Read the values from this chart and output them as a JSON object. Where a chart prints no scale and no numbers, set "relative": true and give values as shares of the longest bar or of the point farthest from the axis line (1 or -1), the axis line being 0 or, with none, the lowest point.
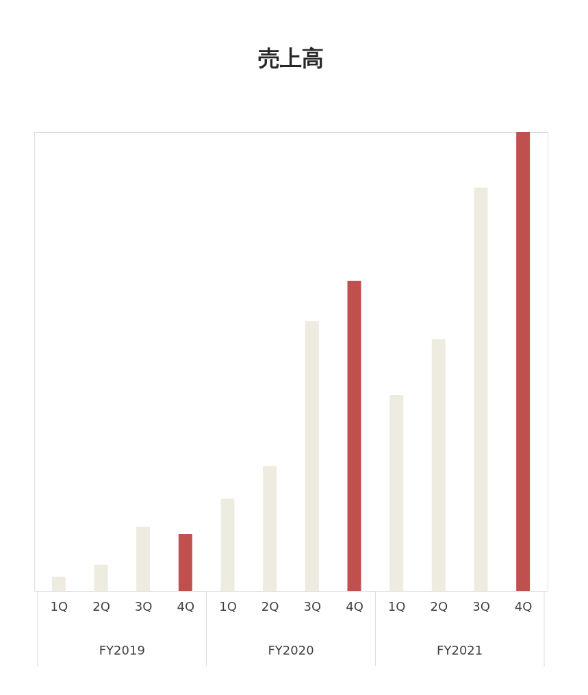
{
  "chart_data": {
    "type": "bar",
    "title": "売上高",
    "relative": true,
    "categories": [
      "1Q",
      "2Q",
      "3Q",
      "4Q",
      "1Q",
      "2Q",
      "3Q",
      "4Q",
      "1Q",
      "2Q",
      "3Q",
      "4Q"
    ],
    "values": [
      0.031,
      0.057,
      0.14,
      0.124,
      0.201,
      0.272,
      0.588,
      0.676,
      0.427,
      0.549,
      0.879,
      1
    ],
    "colors": [
      "#eeebe0",
      "#eeebe0",
      "#eeebe0",
      "#c0504d",
      "#eeebe0",
      "#eeebe0",
      "#eeebe0",
      "#c0504d",
      "#eeebe0",
      "#eeebe0",
      "#eeebe0",
      "#c0504d"
    ],
    "annotations": [
      "FY2019",
      "FY2020",
      "FY2021"
    ],
    "grid": false,
    "legend": false
  }
}
